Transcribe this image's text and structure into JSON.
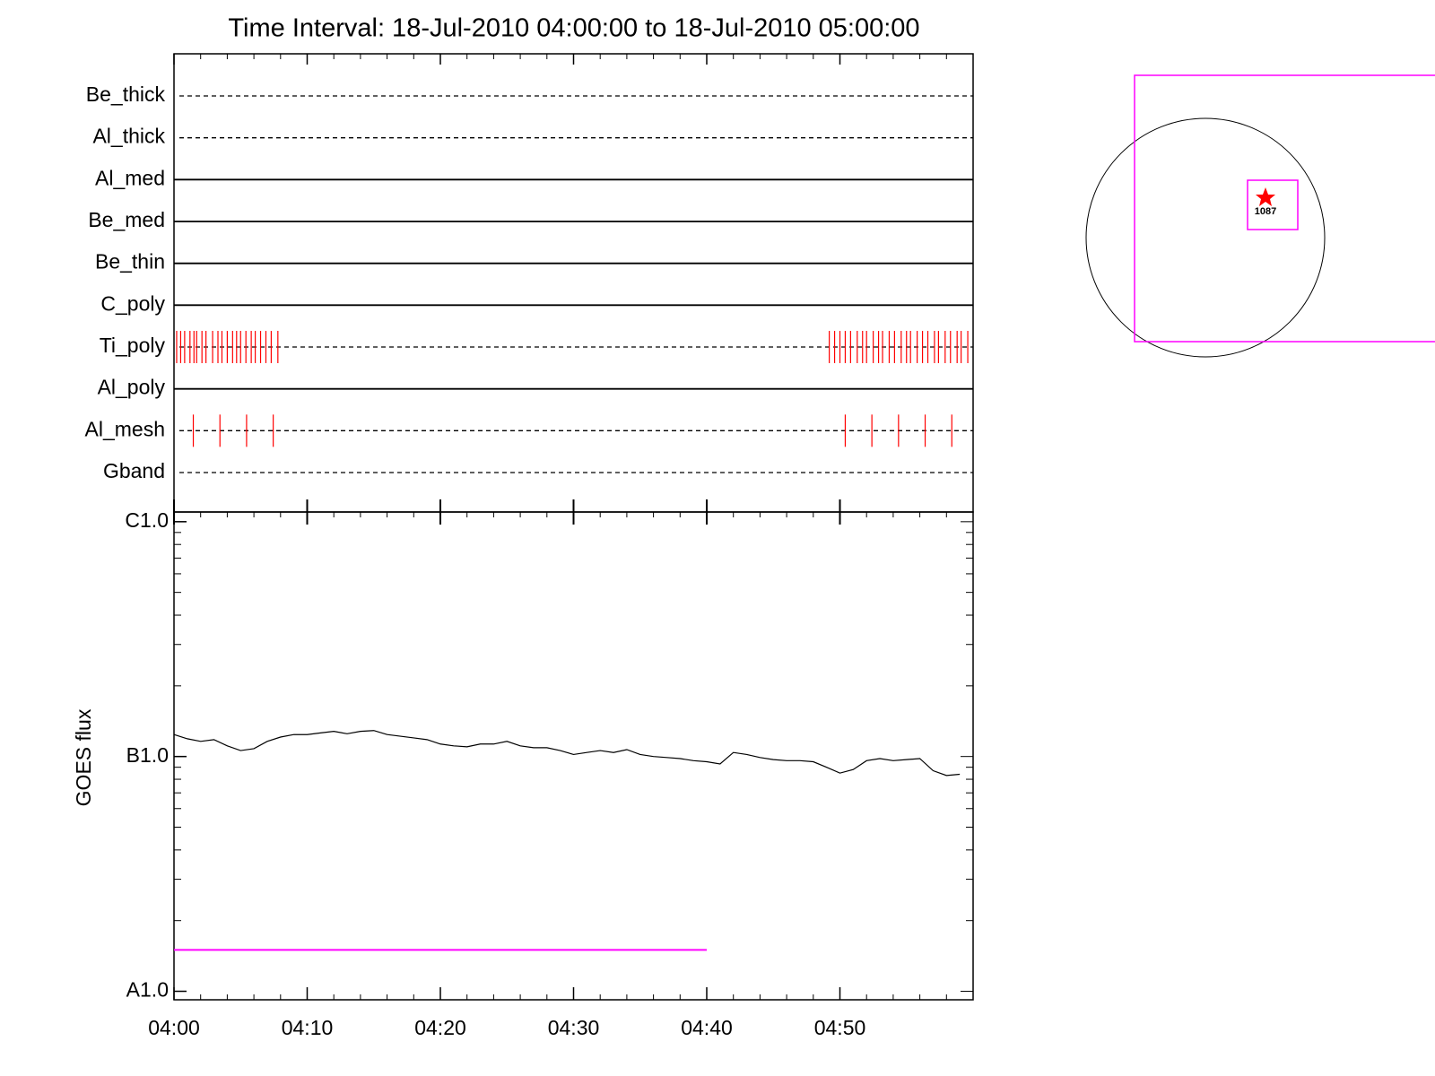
{
  "chart_data": [
    {
      "type": "timeline",
      "title": "Time Interval: 18-Jul-2010 04:00:00 to 18-Jul-2010 05:00:00",
      "categories": [
        "Be_thick",
        "Al_thick",
        "Al_med",
        "Be_med",
        "Be_thin",
        "C_poly",
        "Ti_poly",
        "Al_poly",
        "Al_mesh",
        "Gband"
      ],
      "styles": [
        "dashed",
        "dashed",
        "solid",
        "solid",
        "solid",
        "solid",
        "dashed",
        "solid",
        "dashed",
        "dashed"
      ],
      "observations": [
        [],
        [],
        [],
        [],
        [],
        [],
        [
          0.2,
          0.5,
          0.8,
          1.2,
          1.5,
          1.7,
          2.1,
          2.4,
          2.9,
          3.3,
          3.6,
          4.0,
          4.4,
          4.7,
          5.0,
          5.4,
          5.8,
          6.1,
          6.5,
          6.9,
          7.3,
          7.8,
          49.2,
          49.6,
          50.0,
          50.4,
          50.8,
          51.3,
          51.7,
          52.0,
          52.5,
          52.9,
          53.2,
          53.7,
          54.1,
          54.6,
          55.0,
          55.3,
          55.8,
          56.2,
          56.6,
          57.1,
          57.4,
          57.9,
          58.3,
          58.8,
          59.1,
          59.6
        ],
        [],
        [
          1.45,
          3.45,
          5.45,
          7.45,
          50.4,
          52.4,
          54.4,
          56.4,
          58.4
        ],
        []
      ],
      "color": "#ff0000",
      "xlim": [
        0,
        60
      ]
    },
    {
      "type": "line",
      "ylabel": "GOES flux",
      "log_y": true,
      "xlim": [
        0,
        60
      ],
      "xticks": [
        {
          "value": 0,
          "label": "04:00"
        },
        {
          "value": 10,
          "label": "04:10"
        },
        {
          "value": 20,
          "label": "04:20"
        },
        {
          "value": 30,
          "label": "04:30"
        },
        {
          "value": 40,
          "label": "04:40"
        },
        {
          "value": 50,
          "label": "04:50"
        }
      ],
      "ylim": [
        9.2e-09,
        1.1e-06
      ],
      "yticks": [
        {
          "value": 1e-06,
          "label": "C1.0"
        },
        {
          "value": 1e-07,
          "label": "B1.0"
        },
        {
          "value": 1e-08,
          "label": "A1.0"
        }
      ],
      "x": [
        0,
        1,
        2,
        3,
        4,
        5,
        6,
        7,
        8,
        9,
        10,
        11,
        12,
        13,
        14,
        15,
        16,
        17,
        18,
        19,
        20,
        21,
        22,
        23,
        24,
        25,
        26,
        27,
        28,
        29,
        30,
        31,
        32,
        33,
        34,
        35,
        36,
        37,
        38,
        39,
        40,
        41,
        42,
        43,
        44,
        45,
        46,
        47,
        48,
        49,
        50,
        51,
        52,
        53,
        54,
        55,
        56,
        57,
        58,
        59
      ],
      "series": [
        {
          "color": "#000000",
          "values": [
            1.24e-07,
            1.19e-07,
            1.16e-07,
            1.18e-07,
            1.11e-07,
            1.06e-07,
            1.08e-07,
            1.16e-07,
            1.21e-07,
            1.24e-07,
            1.24e-07,
            1.26e-07,
            1.28e-07,
            1.25e-07,
            1.28e-07,
            1.29e-07,
            1.24e-07,
            1.22e-07,
            1.2e-07,
            1.18e-07,
            1.13e-07,
            1.11e-07,
            1.1e-07,
            1.13e-07,
            1.13e-07,
            1.16e-07,
            1.11e-07,
            1.09e-07,
            1.09e-07,
            1.06e-07,
            1.02e-07,
            1.04e-07,
            1.06e-07,
            1.04e-07,
            1.07e-07,
            1.02e-07,
            1e-07,
            9.9e-08,
            9.8e-08,
            9.6e-08,
            9.5e-08,
            9.3e-08,
            1.04e-07,
            1.02e-07,
            9.9e-08,
            9.7e-08,
            9.6e-08,
            9.6e-08,
            9.5e-08,
            9e-08,
            8.5e-08,
            8.8e-08,
            9.6e-08,
            9.8e-08,
            9.6e-08,
            9.7e-08,
            9.8e-08,
            8.7e-08,
            8.3e-08,
            8.4e-08
          ]
        },
        {
          "color": "#ff00ff",
          "x": [
            0,
            40
          ],
          "values": [
            1.5e-08,
            1.5e-08
          ]
        }
      ]
    },
    {
      "type": "map",
      "annotations": [
        {
          "label": "1087"
        }
      ]
    }
  ]
}
